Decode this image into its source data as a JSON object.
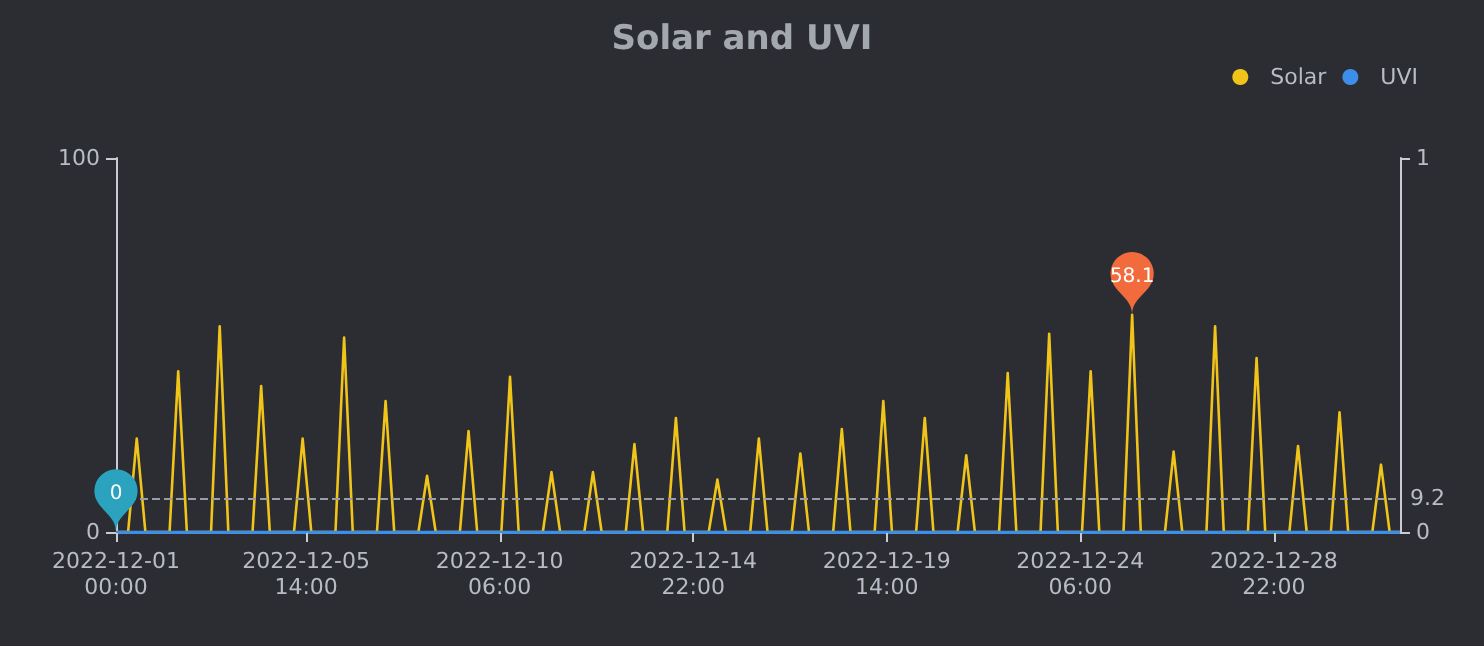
{
  "chart_data": {
    "type": "line",
    "title": "Solar and UVI",
    "x": [
      "2022-12-01T00:00",
      "2022-12-01T07:00",
      "2022-12-01T12:00",
      "2022-12-01T17:00",
      "2022-12-02T07:00",
      "2022-12-02T12:00",
      "2022-12-02T17:00",
      "2022-12-03T07:00",
      "2022-12-03T12:00",
      "2022-12-03T17:00",
      "2022-12-04T07:00",
      "2022-12-04T12:00",
      "2022-12-04T17:00",
      "2022-12-05T07:00",
      "2022-12-05T12:00",
      "2022-12-05T17:00",
      "2022-12-06T07:00",
      "2022-12-06T12:00",
      "2022-12-06T17:00",
      "2022-12-07T07:00",
      "2022-12-07T12:00",
      "2022-12-07T17:00",
      "2022-12-08T07:00",
      "2022-12-08T12:00",
      "2022-12-08T17:00",
      "2022-12-09T07:00",
      "2022-12-09T12:00",
      "2022-12-09T17:00",
      "2022-12-10T07:00",
      "2022-12-10T12:00",
      "2022-12-10T17:00",
      "2022-12-11T07:00",
      "2022-12-11T12:00",
      "2022-12-11T17:00",
      "2022-12-12T07:00",
      "2022-12-12T12:00",
      "2022-12-12T17:00",
      "2022-12-13T07:00",
      "2022-12-13T12:00",
      "2022-12-13T17:00",
      "2022-12-14T07:00",
      "2022-12-14T12:00",
      "2022-12-14T17:00",
      "2022-12-15T07:00",
      "2022-12-15T12:00",
      "2022-12-15T17:00",
      "2022-12-16T07:00",
      "2022-12-16T12:00",
      "2022-12-16T17:00",
      "2022-12-17T07:00",
      "2022-12-17T12:00",
      "2022-12-17T17:00",
      "2022-12-18T07:00",
      "2022-12-18T12:00",
      "2022-12-18T17:00",
      "2022-12-19T07:00",
      "2022-12-19T12:00",
      "2022-12-19T17:00",
      "2022-12-20T07:00",
      "2022-12-20T12:00",
      "2022-12-20T17:00",
      "2022-12-21T07:00",
      "2022-12-21T12:00",
      "2022-12-21T17:00",
      "2022-12-22T07:00",
      "2022-12-22T12:00",
      "2022-12-22T17:00",
      "2022-12-23T07:00",
      "2022-12-23T12:00",
      "2022-12-23T17:00",
      "2022-12-24T07:00",
      "2022-12-24T12:00",
      "2022-12-24T17:00",
      "2022-12-25T07:00",
      "2022-12-25T12:00",
      "2022-12-25T17:00",
      "2022-12-26T07:00",
      "2022-12-26T12:00",
      "2022-12-26T17:00",
      "2022-12-27T07:00",
      "2022-12-27T12:00",
      "2022-12-27T17:00",
      "2022-12-28T07:00",
      "2022-12-28T12:00",
      "2022-12-28T17:00",
      "2022-12-29T07:00",
      "2022-12-29T12:00",
      "2022-12-29T17:00",
      "2022-12-30T07:00",
      "2022-12-30T12:00",
      "2022-12-30T17:00",
      "2022-12-31T07:00",
      "2022-12-31T12:00",
      "2022-12-31T17:00",
      "2022-12-31T23:00"
    ],
    "series": [
      {
        "name": "Solar",
        "color": "#f0c419",
        "values": [
          0,
          0,
          25,
          0,
          0,
          43,
          0,
          0,
          55,
          0,
          0,
          39,
          0,
          0,
          25,
          0,
          0,
          52,
          0,
          0,
          35,
          0,
          0,
          15,
          0,
          0,
          27,
          0,
          0,
          41.5,
          0,
          0,
          16,
          0,
          0,
          16,
          0,
          0,
          23.5,
          0,
          0,
          30.5,
          0,
          0,
          14,
          0,
          0,
          25,
          0,
          0,
          21,
          0,
          0,
          27.5,
          0,
          0,
          35,
          0,
          0,
          30.5,
          0,
          0,
          20.5,
          0,
          0,
          42.5,
          0,
          0,
          53,
          0,
          0,
          43,
          0,
          0,
          58.1,
          0,
          0,
          21.5,
          0,
          0,
          55,
          0,
          0,
          46.5,
          0,
          0,
          23,
          0,
          0,
          32,
          0,
          0,
          18,
          0,
          0
        ]
      },
      {
        "name": "UVI",
        "color": "#3d8ee8",
        "axis": "y2",
        "x": [
          "2022-12-01T00:00",
          "2022-12-31T23:00"
        ],
        "values": [
          0,
          0
        ]
      }
    ],
    "xlim": [
      "2022-12-01T00:00",
      "2022-12-31T23:00"
    ],
    "xticks": [
      {
        "value": "2022-12-01T00:00",
        "label": "2022-12-01 00:00"
      },
      {
        "value": "2022-12-05T14:00",
        "label": "2022-12-05 14:00"
      },
      {
        "value": "2022-12-10T06:00",
        "label": "2022-12-10 06:00"
      },
      {
        "value": "2022-12-14T22:00",
        "label": "2022-12-14 22:00"
      },
      {
        "value": "2022-12-19T14:00",
        "label": "2022-12-19 14:00"
      },
      {
        "value": "2022-12-24T06:00",
        "label": "2022-12-24 06:00"
      },
      {
        "value": "2022-12-28T22:00",
        "label": "2022-12-28 22:00"
      }
    ],
    "ylim": [
      0,
      100
    ],
    "yticks": [
      0,
      100
    ],
    "y2lim": [
      0,
      1
    ],
    "y2ticks": [
      0,
      1
    ],
    "ref_lines": [
      {
        "axis": "y",
        "value": 9.2,
        "label": "9.2",
        "line_style": "dashed"
      }
    ],
    "annotations": [
      {
        "text": "0",
        "x": "2022-12-01T00:00",
        "y": 0
      },
      {
        "text": "58.1",
        "x": "2022-12-25T12:00",
        "y": 58.1
      }
    ],
    "legend": "top right",
    "grid": false,
    "marker": "none",
    "line_style": "solid"
  }
}
